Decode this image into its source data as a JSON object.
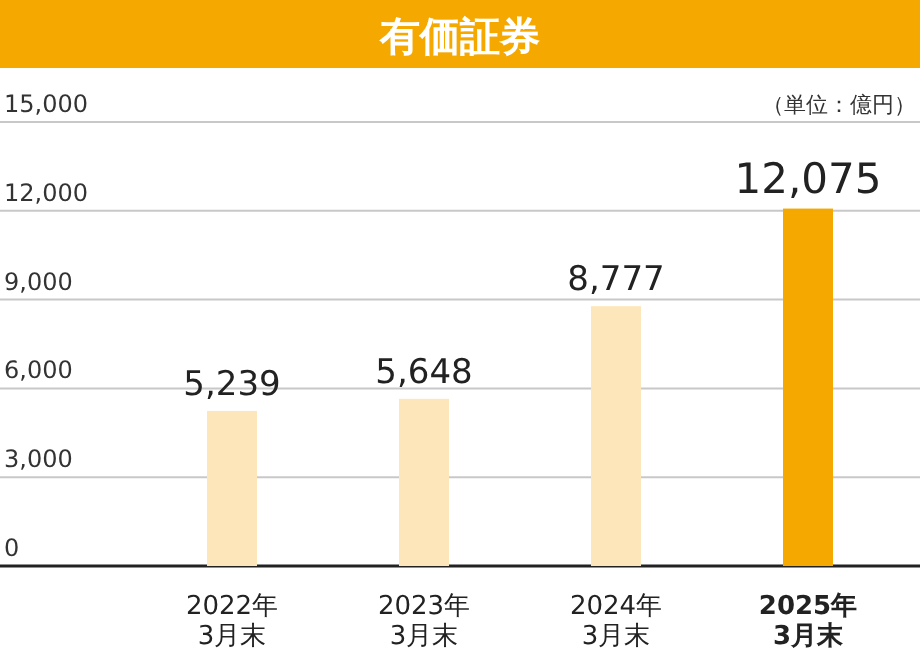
{
  "chart_data": {
    "type": "bar",
    "title": "有価証券",
    "categories": [
      "2022年\n3月末",
      "2023年\n3月末",
      "2024年\n3月末",
      "2025年\n3月末"
    ],
    "values": [
      5239,
      5648,
      8777,
      12075
    ],
    "colors": [
      "#fde6b9",
      "#fde6b9",
      "#fde6b9",
      "#f5a800"
    ],
    "ylim": [
      0,
      15000
    ],
    "yticks": [
      {
        "value": 0,
        "label": "0"
      },
      {
        "value": 3000,
        "label": "3,000"
      },
      {
        "value": 6000,
        "label": "6,000"
      },
      {
        "value": 9000,
        "label": "9,000"
      },
      {
        "value": 12000,
        "label": "12,000"
      },
      {
        "value": 15000,
        "label": "15,000"
      }
    ],
    "value_labels": [
      "5,239",
      "5,648",
      "8,777",
      "12,075"
    ],
    "grid": "y",
    "annotations": [
      "（単位：億円）"
    ]
  }
}
